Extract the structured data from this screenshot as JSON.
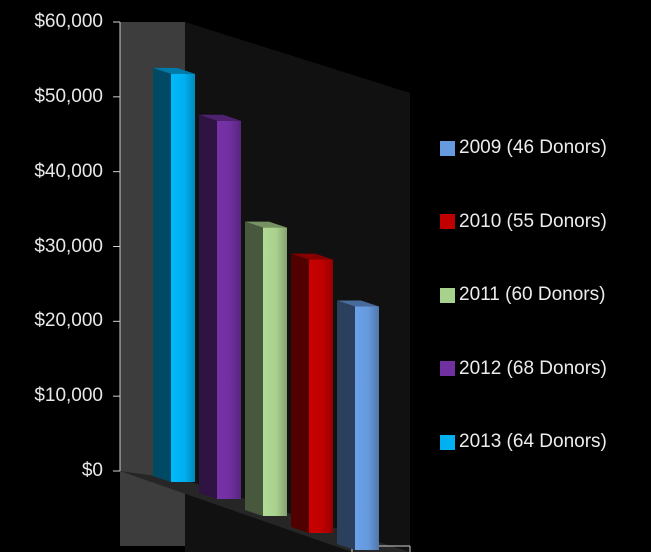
{
  "chart_data": {
    "type": "bar",
    "title": "",
    "xlabel": "",
    "ylabel": "",
    "ylim": [
      0,
      60000
    ],
    "yticks": [
      "$0",
      "$10,000",
      "$20,000",
      "$30,000",
      "$40,000",
      "$50,000",
      "$60,000"
    ],
    "grid": false,
    "legend_position": "right",
    "series": [
      {
        "name": "2013 (64 Donors)",
        "value": 52000,
        "color": "#00b0f0"
      },
      {
        "name": "2012 (68 Donors)",
        "value": 48000,
        "color": "#7030a0"
      },
      {
        "name": "2011 (60 Donors)",
        "value": 36000,
        "color": "#a9d18e"
      },
      {
        "name": "2010 (55 Donors)",
        "value": 34000,
        "color": "#c00000"
      },
      {
        "name": "2009 (46 Donors)",
        "value": 30000,
        "color": "#6699dd"
      }
    ],
    "legend_order": [
      "2009 (46 Donors)",
      "2010 (55 Donors)",
      "2011 (60 Donors)",
      "2012 (68 Donors)",
      "2013 (64 Donors)"
    ]
  }
}
